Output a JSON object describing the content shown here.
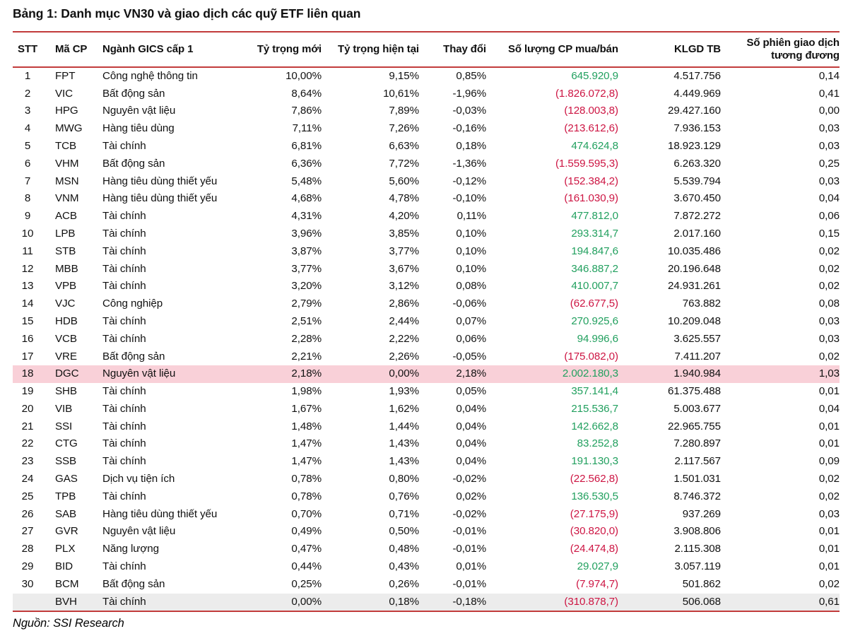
{
  "title": "Bảng 1: Danh mục VN30 và giao dịch các quỹ ETF liên quan",
  "source": "Nguồn: SSI Research",
  "colors": {
    "rule_red": "#c23b3b",
    "positive_green": "#22a05f",
    "negative_red": "#cd1543",
    "highlight_pink": "#f9d0d8",
    "highlight_gray": "#ececec"
  },
  "table": {
    "columns": [
      "STT",
      "Mã CP",
      "Ngành GICS cấp 1",
      "Tỷ trọng mới",
      "Tỷ trọng hiện tại",
      "Thay đổi",
      "Số lượng CP mua/bán",
      "KLGD TB",
      "Số phiên giao dịch tương đương"
    ],
    "col_keys": [
      "stt",
      "code",
      "sector",
      "w_new",
      "w_cur",
      "chg",
      "qty",
      "klgd",
      "sessions"
    ],
    "rows": [
      {
        "stt": "1",
        "code": "FPT",
        "sector": "Công nghệ thông tin",
        "w_new": "10,00%",
        "w_cur": "9,15%",
        "chg": "0,85%",
        "qty": "645.920,9",
        "qty_sign": "pos",
        "klgd": "4.517.756",
        "sessions": "0,14",
        "hl": ""
      },
      {
        "stt": "2",
        "code": "VIC",
        "sector": "Bất động sản",
        "w_new": "8,64%",
        "w_cur": "10,61%",
        "chg": "-1,96%",
        "qty": "(1.826.072,8)",
        "qty_sign": "neg",
        "klgd": "4.449.969",
        "sessions": "0,41",
        "hl": ""
      },
      {
        "stt": "3",
        "code": "HPG",
        "sector": "Nguyên vật liệu",
        "w_new": "7,86%",
        "w_cur": "7,89%",
        "chg": "-0,03%",
        "qty": "(128.003,8)",
        "qty_sign": "neg",
        "klgd": "29.427.160",
        "sessions": "0,00",
        "hl": ""
      },
      {
        "stt": "4",
        "code": "MWG",
        "sector": "Hàng tiêu dùng",
        "w_new": "7,11%",
        "w_cur": "7,26%",
        "chg": "-0,16%",
        "qty": "(213.612,6)",
        "qty_sign": "neg",
        "klgd": "7.936.153",
        "sessions": "0,03",
        "hl": ""
      },
      {
        "stt": "5",
        "code": "TCB",
        "sector": "Tài chính",
        "w_new": "6,81%",
        "w_cur": "6,63%",
        "chg": "0,18%",
        "qty": "474.624,8",
        "qty_sign": "pos",
        "klgd": "18.923.129",
        "sessions": "0,03",
        "hl": ""
      },
      {
        "stt": "6",
        "code": "VHM",
        "sector": "Bất động sản",
        "w_new": "6,36%",
        "w_cur": "7,72%",
        "chg": "-1,36%",
        "qty": "(1.559.595,3)",
        "qty_sign": "neg",
        "klgd": "6.263.320",
        "sessions": "0,25",
        "hl": ""
      },
      {
        "stt": "7",
        "code": "MSN",
        "sector": "Hàng tiêu dùng thiết yếu",
        "w_new": "5,48%",
        "w_cur": "5,60%",
        "chg": "-0,12%",
        "qty": "(152.384,2)",
        "qty_sign": "neg",
        "klgd": "5.539.794",
        "sessions": "0,03",
        "hl": ""
      },
      {
        "stt": "8",
        "code": "VNM",
        "sector": "Hàng tiêu dùng thiết yếu",
        "w_new": "4,68%",
        "w_cur": "4,78%",
        "chg": "-0,10%",
        "qty": "(161.030,9)",
        "qty_sign": "neg",
        "klgd": "3.670.450",
        "sessions": "0,04",
        "hl": ""
      },
      {
        "stt": "9",
        "code": "ACB",
        "sector": "Tài chính",
        "w_new": "4,31%",
        "w_cur": "4,20%",
        "chg": "0,11%",
        "qty": "477.812,0",
        "qty_sign": "pos",
        "klgd": "7.872.272",
        "sessions": "0,06",
        "hl": ""
      },
      {
        "stt": "10",
        "code": "LPB",
        "sector": "Tài chính",
        "w_new": "3,96%",
        "w_cur": "3,85%",
        "chg": "0,10%",
        "qty": "293.314,7",
        "qty_sign": "pos",
        "klgd": "2.017.160",
        "sessions": "0,15",
        "hl": ""
      },
      {
        "stt": "11",
        "code": "STB",
        "sector": "Tài chính",
        "w_new": "3,87%",
        "w_cur": "3,77%",
        "chg": "0,10%",
        "qty": "194.847,6",
        "qty_sign": "pos",
        "klgd": "10.035.486",
        "sessions": "0,02",
        "hl": ""
      },
      {
        "stt": "12",
        "code": "MBB",
        "sector": "Tài chính",
        "w_new": "3,77%",
        "w_cur": "3,67%",
        "chg": "0,10%",
        "qty": "346.887,2",
        "qty_sign": "pos",
        "klgd": "20.196.648",
        "sessions": "0,02",
        "hl": ""
      },
      {
        "stt": "13",
        "code": "VPB",
        "sector": "Tài chính",
        "w_new": "3,20%",
        "w_cur": "3,12%",
        "chg": "0,08%",
        "qty": "410.007,7",
        "qty_sign": "pos",
        "klgd": "24.931.261",
        "sessions": "0,02",
        "hl": ""
      },
      {
        "stt": "14",
        "code": "VJC",
        "sector": "Công nghiệp",
        "w_new": "2,79%",
        "w_cur": "2,86%",
        "chg": "-0,06%",
        "qty": "(62.677,5)",
        "qty_sign": "neg",
        "klgd": "763.882",
        "sessions": "0,08",
        "hl": ""
      },
      {
        "stt": "15",
        "code": "HDB",
        "sector": "Tài chính",
        "w_new": "2,51%",
        "w_cur": "2,44%",
        "chg": "0,07%",
        "qty": "270.925,6",
        "qty_sign": "pos",
        "klgd": "10.209.048",
        "sessions": "0,03",
        "hl": ""
      },
      {
        "stt": "16",
        "code": "VCB",
        "sector": "Tài chính",
        "w_new": "2,28%",
        "w_cur": "2,22%",
        "chg": "0,06%",
        "qty": "94.996,6",
        "qty_sign": "pos",
        "klgd": "3.625.557",
        "sessions": "0,03",
        "hl": ""
      },
      {
        "stt": "17",
        "code": "VRE",
        "sector": "Bất động sản",
        "w_new": "2,21%",
        "w_cur": "2,26%",
        "chg": "-0,05%",
        "qty": "(175.082,0)",
        "qty_sign": "neg",
        "klgd": "7.411.207",
        "sessions": "0,02",
        "hl": ""
      },
      {
        "stt": "18",
        "code": "DGC",
        "sector": "Nguyên vật liệu",
        "w_new": "2,18%",
        "w_cur": "0,00%",
        "chg": "2,18%",
        "qty": "2.002.180,3",
        "qty_sign": "pos",
        "klgd": "1.940.984",
        "sessions": "1,03",
        "hl": "pink"
      },
      {
        "stt": "19",
        "code": "SHB",
        "sector": "Tài chính",
        "w_new": "1,98%",
        "w_cur": "1,93%",
        "chg": "0,05%",
        "qty": "357.141,4",
        "qty_sign": "pos",
        "klgd": "61.375.488",
        "sessions": "0,01",
        "hl": ""
      },
      {
        "stt": "20",
        "code": "VIB",
        "sector": "Tài chính",
        "w_new": "1,67%",
        "w_cur": "1,62%",
        "chg": "0,04%",
        "qty": "215.536,7",
        "qty_sign": "pos",
        "klgd": "5.003.677",
        "sessions": "0,04",
        "hl": ""
      },
      {
        "stt": "21",
        "code": "SSI",
        "sector": "Tài chính",
        "w_new": "1,48%",
        "w_cur": "1,44%",
        "chg": "0,04%",
        "qty": "142.662,8",
        "qty_sign": "pos",
        "klgd": "22.965.755",
        "sessions": "0,01",
        "hl": ""
      },
      {
        "stt": "22",
        "code": "CTG",
        "sector": "Tài chính",
        "w_new": "1,47%",
        "w_cur": "1,43%",
        "chg": "0,04%",
        "qty": "83.252,8",
        "qty_sign": "pos",
        "klgd": "7.280.897",
        "sessions": "0,01",
        "hl": ""
      },
      {
        "stt": "23",
        "code": "SSB",
        "sector": "Tài chính",
        "w_new": "1,47%",
        "w_cur": "1,43%",
        "chg": "0,04%",
        "qty": "191.130,3",
        "qty_sign": "pos",
        "klgd": "2.117.567",
        "sessions": "0,09",
        "hl": ""
      },
      {
        "stt": "24",
        "code": "GAS",
        "sector": "Dịch vụ tiện ích",
        "w_new": "0,78%",
        "w_cur": "0,80%",
        "chg": "-0,02%",
        "qty": "(22.562,8)",
        "qty_sign": "neg",
        "klgd": "1.501.031",
        "sessions": "0,02",
        "hl": ""
      },
      {
        "stt": "25",
        "code": "TPB",
        "sector": "Tài chính",
        "w_new": "0,78%",
        "w_cur": "0,76%",
        "chg": "0,02%",
        "qty": "136.530,5",
        "qty_sign": "pos",
        "klgd": "8.746.372",
        "sessions": "0,02",
        "hl": ""
      },
      {
        "stt": "26",
        "code": "SAB",
        "sector": "Hàng tiêu dùng thiết yếu",
        "w_new": "0,70%",
        "w_cur": "0,71%",
        "chg": "-0,02%",
        "qty": "(27.175,9)",
        "qty_sign": "neg",
        "klgd": "937.269",
        "sessions": "0,03",
        "hl": ""
      },
      {
        "stt": "27",
        "code": "GVR",
        "sector": "Nguyên vật liệu",
        "w_new": "0,49%",
        "w_cur": "0,50%",
        "chg": "-0,01%",
        "qty": "(30.820,0)",
        "qty_sign": "neg",
        "klgd": "3.908.806",
        "sessions": "0,01",
        "hl": ""
      },
      {
        "stt": "28",
        "code": "PLX",
        "sector": "Năng lượng",
        "w_new": "0,47%",
        "w_cur": "0,48%",
        "chg": "-0,01%",
        "qty": "(24.474,8)",
        "qty_sign": "neg",
        "klgd": "2.115.308",
        "sessions": "0,01",
        "hl": ""
      },
      {
        "stt": "29",
        "code": "BID",
        "sector": "Tài chính",
        "w_new": "0,44%",
        "w_cur": "0,43%",
        "chg": "0,01%",
        "qty": "29.027,9",
        "qty_sign": "pos",
        "klgd": "3.057.119",
        "sessions": "0,01",
        "hl": ""
      },
      {
        "stt": "30",
        "code": "BCM",
        "sector": "Bất động sản",
        "w_new": "0,25%",
        "w_cur": "0,26%",
        "chg": "-0,01%",
        "qty": "(7.974,7)",
        "qty_sign": "neg",
        "klgd": "501.862",
        "sessions": "0,02",
        "hl": ""
      },
      {
        "stt": "",
        "code": "BVH",
        "sector": "Tài chính",
        "w_new": "0,00%",
        "w_cur": "0,18%",
        "chg": "-0,18%",
        "qty": "(310.878,7)",
        "qty_sign": "neg",
        "klgd": "506.068",
        "sessions": "0,61",
        "hl": "gray"
      }
    ]
  }
}
